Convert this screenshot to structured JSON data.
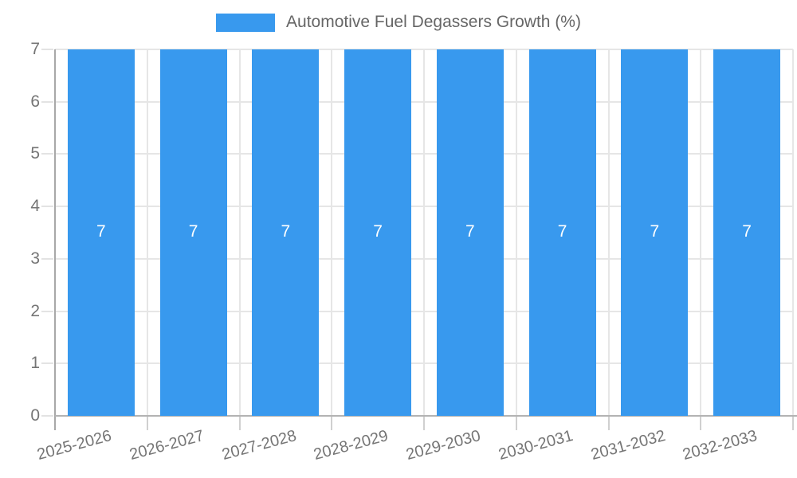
{
  "chart_data": {
    "type": "bar",
    "title": "Automotive Fuel Degassers Growth (%)",
    "legend": {
      "label": "Automotive Fuel Degassers Growth (%)",
      "position": "top-center"
    },
    "categories": [
      "2025-2026",
      "2026-2027",
      "2027-2028",
      "2028-2029",
      "2029-2030",
      "2030-2031",
      "2031-2032",
      "2032-2033"
    ],
    "series": [
      {
        "name": "Automotive Fuel Degassers Growth (%)",
        "values": [
          7,
          7,
          7,
          7,
          7,
          7,
          7,
          7
        ],
        "data_labels": [
          "7",
          "7",
          "7",
          "7",
          "7",
          "7",
          "7",
          "7"
        ]
      }
    ],
    "xlabel": "",
    "ylabel": "",
    "ylim": [
      0,
      7
    ],
    "yticks": [
      0,
      1,
      2,
      3,
      4,
      5,
      6,
      7
    ],
    "grid": true,
    "colors": {
      "bar": "#3899ee",
      "bar_label": "#ffffff",
      "grid": "#e6e6e6",
      "axis": "#aaaaaa",
      "text": "#757575",
      "background": "#ffffff"
    }
  }
}
